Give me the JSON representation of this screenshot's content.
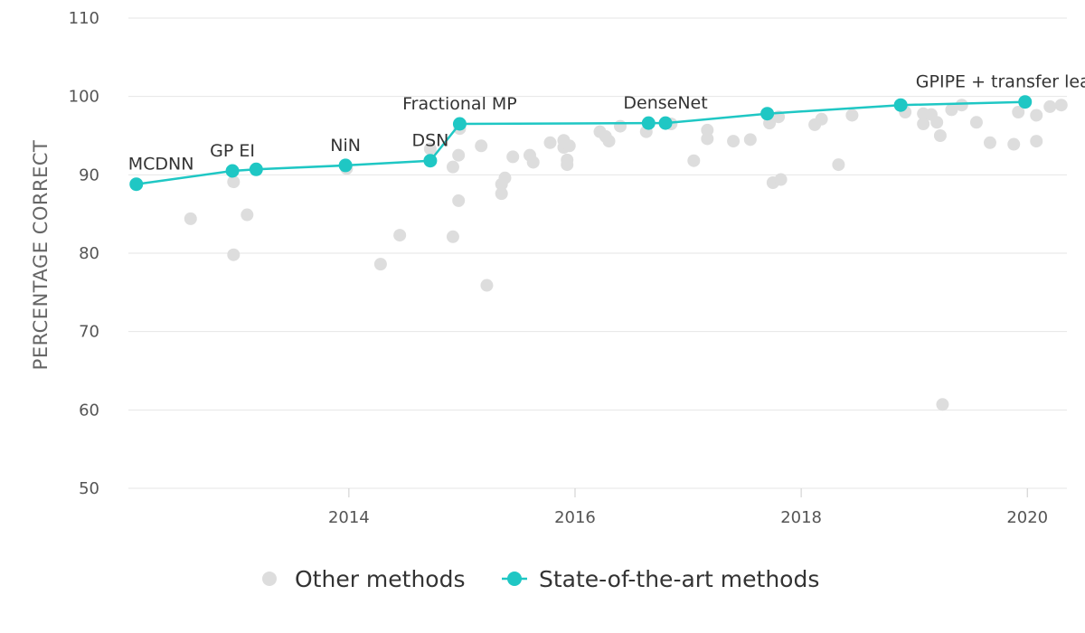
{
  "chart_data": {
    "type": "scatter",
    "ylabel": "PERCENTAGE CORRECT",
    "xlabel": "",
    "xlim": [
      2012.05,
      2020.35
    ],
    "ylim": [
      50,
      110
    ],
    "x_ticks": [
      2014,
      2016,
      2018,
      2020
    ],
    "y_ticks": [
      50,
      60,
      70,
      80,
      90,
      100,
      110
    ],
    "grid": "horizontal",
    "legend_position": "bottom",
    "colors": {
      "other": "#dddddd",
      "sota": "#1fc7c4"
    },
    "series": [
      {
        "name": "Other methods",
        "type": "scatter",
        "points": [
          [
            2012.6,
            84.4
          ],
          [
            2012.98,
            89.1
          ],
          [
            2012.98,
            79.8
          ],
          [
            2013.1,
            84.9
          ],
          [
            2013.98,
            90.8
          ],
          [
            2014.28,
            78.6
          ],
          [
            2014.45,
            82.3
          ],
          [
            2014.72,
            93.3
          ],
          [
            2014.92,
            91.0
          ],
          [
            2014.92,
            82.1
          ],
          [
            2014.97,
            92.5
          ],
          [
            2014.97,
            86.7
          ],
          [
            2014.98,
            95.9
          ],
          [
            2015.17,
            93.7
          ],
          [
            2015.22,
            75.9
          ],
          [
            2015.35,
            88.8
          ],
          [
            2015.35,
            87.6
          ],
          [
            2015.38,
            89.6
          ],
          [
            2015.45,
            92.3
          ],
          [
            2015.6,
            92.5
          ],
          [
            2015.63,
            91.6
          ],
          [
            2015.78,
            94.1
          ],
          [
            2015.9,
            94.4
          ],
          [
            2015.9,
            93.5
          ],
          [
            2015.93,
            91.9
          ],
          [
            2015.93,
            91.3
          ],
          [
            2015.95,
            93.7
          ],
          [
            2016.22,
            95.5
          ],
          [
            2016.27,
            94.9
          ],
          [
            2016.3,
            94.3
          ],
          [
            2016.4,
            96.2
          ],
          [
            2016.63,
            95.5
          ],
          [
            2016.85,
            96.5
          ],
          [
            2017.05,
            91.8
          ],
          [
            2017.17,
            95.7
          ],
          [
            2017.17,
            94.6
          ],
          [
            2017.4,
            94.3
          ],
          [
            2017.55,
            94.5
          ],
          [
            2017.72,
            96.6
          ],
          [
            2017.75,
            89.0
          ],
          [
            2017.8,
            97.4
          ],
          [
            2017.82,
            89.4
          ],
          [
            2018.12,
            96.4
          ],
          [
            2018.18,
            97.1
          ],
          [
            2018.33,
            91.3
          ],
          [
            2018.45,
            97.6
          ],
          [
            2018.92,
            98.0
          ],
          [
            2019.08,
            97.8
          ],
          [
            2019.08,
            96.5
          ],
          [
            2019.15,
            97.7
          ],
          [
            2019.2,
            96.7
          ],
          [
            2019.23,
            95.0
          ],
          [
            2019.25,
            60.7
          ],
          [
            2019.33,
            98.3
          ],
          [
            2019.42,
            98.9
          ],
          [
            2019.55,
            96.7
          ],
          [
            2019.67,
            94.1
          ],
          [
            2019.88,
            93.9
          ],
          [
            2019.92,
            98.0
          ],
          [
            2020.08,
            97.6
          ],
          [
            2020.08,
            94.3
          ],
          [
            2020.2,
            98.7
          ],
          [
            2020.3,
            98.9
          ]
        ]
      },
      {
        "name": "State-of-the-art methods",
        "type": "line",
        "points": [
          [
            2012.12,
            88.8
          ],
          [
            2012.97,
            90.5
          ],
          [
            2013.18,
            90.7
          ],
          [
            2013.97,
            91.2
          ],
          [
            2014.72,
            91.8
          ],
          [
            2014.98,
            96.5
          ],
          [
            2016.65,
            96.6
          ],
          [
            2016.8,
            96.6
          ],
          [
            2017.7,
            97.8
          ],
          [
            2018.88,
            98.9
          ],
          [
            2019.98,
            99.3
          ]
        ]
      }
    ],
    "annotations": [
      {
        "text": "MCDNN",
        "x": 2012.12,
        "y": 88.8
      },
      {
        "text": "GP EI",
        "x": 2012.97,
        "y": 90.5
      },
      {
        "text": "NiN",
        "x": 2013.97,
        "y": 91.2
      },
      {
        "text": "DSN",
        "x": 2014.72,
        "y": 91.8
      },
      {
        "text": "Fractional MP",
        "x": 2014.98,
        "y": 96.5
      },
      {
        "text": "DenseNet",
        "x": 2016.8,
        "y": 96.6
      },
      {
        "text": "GPIPE + transfer learning",
        "x": 2019.98,
        "y": 99.3
      }
    ]
  }
}
